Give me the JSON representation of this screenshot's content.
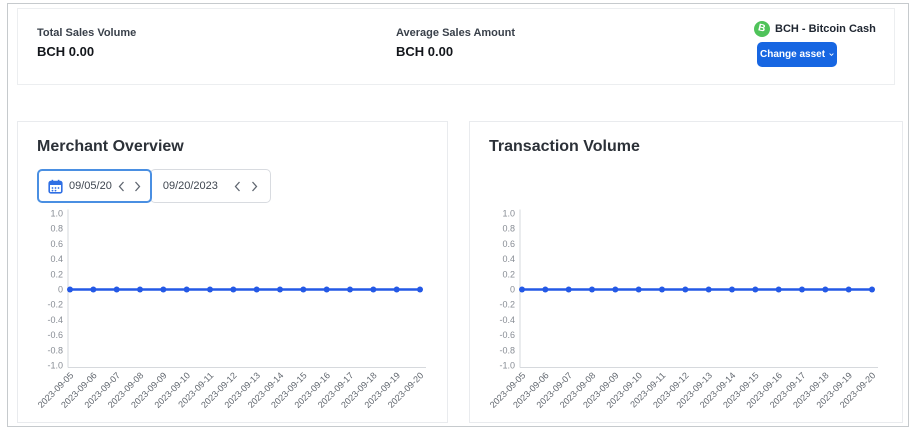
{
  "stats": [
    {
      "label": "Total Sales Volume",
      "value": "BCH 0.00"
    },
    {
      "label": "Average Sales Amount",
      "value": "BCH 0.00"
    }
  ],
  "asset": {
    "name": "BCH - Bitcoin Cash",
    "icon_letter": "B",
    "change_button": "Change asset"
  },
  "date_picker": {
    "start": "09/05/20",
    "end": "09/20/2023"
  },
  "colors": {
    "accent_blue": "#1766e2",
    "line_blue": "#2459e6",
    "bch_green": "#4fc35a"
  },
  "chart_data": [
    {
      "type": "line",
      "title": "Merchant Overview",
      "x": [
        "2023-09-05",
        "2023-09-06",
        "2023-09-07",
        "2023-09-08",
        "2023-09-09",
        "2023-09-10",
        "2023-09-11",
        "2023-09-12",
        "2023-09-13",
        "2023-09-14",
        "2023-09-15",
        "2023-09-16",
        "2023-09-17",
        "2023-09-18",
        "2023-09-19",
        "2023-09-20"
      ],
      "series": [
        {
          "name": "value",
          "values": [
            0,
            0,
            0,
            0,
            0,
            0,
            0,
            0,
            0,
            0,
            0,
            0,
            0,
            0,
            0,
            0
          ]
        }
      ],
      "ylim": [
        -1.0,
        1.0
      ],
      "ytick_step": 0.2,
      "grid": false,
      "legend": "none",
      "line_color": "#2459e6"
    },
    {
      "type": "line",
      "title": "Transaction Volume",
      "x": [
        "2023-09-05",
        "2023-09-06",
        "2023-09-07",
        "2023-09-08",
        "2023-09-09",
        "2023-09-10",
        "2023-09-11",
        "2023-09-12",
        "2023-09-13",
        "2023-09-14",
        "2023-09-15",
        "2023-09-16",
        "2023-09-17",
        "2023-09-18",
        "2023-09-19",
        "2023-09-20"
      ],
      "series": [
        {
          "name": "value",
          "values": [
            0,
            0,
            0,
            0,
            0,
            0,
            0,
            0,
            0,
            0,
            0,
            0,
            0,
            0,
            0,
            0
          ]
        }
      ],
      "ylim": [
        -1.0,
        1.0
      ],
      "ytick_step": 0.2,
      "grid": false,
      "legend": "none",
      "line_color": "#2459e6"
    }
  ]
}
